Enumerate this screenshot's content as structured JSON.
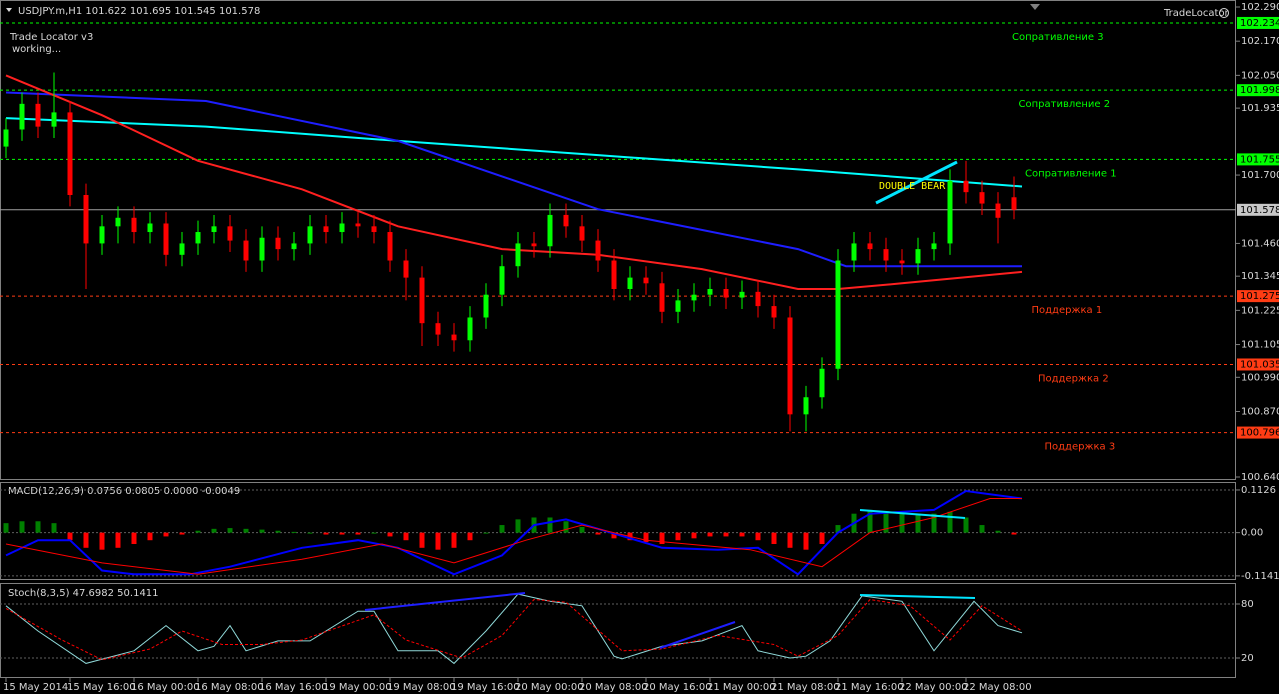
{
  "chart_data": [
    {
      "type": "candlestick",
      "title": "USDJPY.m,H1  101.622 101.695 101.545 101.578",
      "indicator": "Trade Locator v3",
      "status": "working...",
      "logo": "TradeLocator",
      "annotation": "DOUBLE BEAR",
      "x": [
        0,
        2,
        4,
        6,
        8,
        10,
        12,
        14,
        16,
        18,
        20,
        22,
        24,
        26,
        28,
        30,
        32,
        34,
        36,
        38,
        40,
        42,
        44,
        46,
        48,
        50,
        52,
        54,
        56,
        58,
        60,
        62,
        64,
        66,
        68,
        70,
        72,
        74,
        76,
        78,
        80,
        82,
        84,
        86,
        88,
        90,
        92,
        94,
        96,
        98,
        100,
        102,
        104,
        106,
        108,
        110,
        112,
        114,
        116,
        118,
        120,
        122,
        124,
        126
      ],
      "open": [
        101.8,
        101.86,
        101.95,
        101.87,
        101.92,
        101.63,
        101.46,
        101.52,
        101.55,
        101.5,
        101.53,
        101.42,
        101.46,
        101.5,
        101.52,
        101.47,
        101.4,
        101.48,
        101.44,
        101.46,
        101.52,
        101.5,
        101.53,
        101.52,
        101.5,
        101.4,
        101.34,
        101.18,
        101.14,
        101.12,
        101.2,
        101.28,
        101.38,
        101.46,
        101.45,
        101.56,
        101.52,
        101.47,
        101.4,
        101.3,
        101.34,
        101.32,
        101.22,
        101.26,
        101.28,
        101.3,
        101.27,
        101.29,
        101.24,
        101.2,
        100.86,
        100.92,
        101.02,
        101.4,
        101.46,
        101.44,
        101.4,
        101.39,
        101.44,
        101.46,
        101.68,
        101.64,
        101.6,
        101.622
      ],
      "high": [
        101.9,
        101.99,
        101.99,
        102.06,
        101.96,
        101.67,
        101.56,
        101.59,
        101.59,
        101.57,
        101.57,
        101.5,
        101.54,
        101.56,
        101.56,
        101.51,
        101.52,
        101.52,
        101.5,
        101.56,
        101.56,
        101.57,
        101.57,
        101.56,
        101.54,
        101.44,
        101.38,
        101.22,
        101.18,
        101.24,
        101.32,
        101.42,
        101.5,
        101.5,
        101.6,
        101.6,
        101.56,
        101.51,
        101.44,
        101.38,
        101.38,
        101.36,
        101.3,
        101.32,
        101.34,
        101.34,
        101.33,
        101.33,
        101.28,
        101.24,
        100.96,
        101.06,
        101.44,
        101.5,
        101.5,
        101.48,
        101.44,
        101.48,
        101.5,
        101.72,
        101.75,
        101.68,
        101.64,
        101.695
      ],
      "low": [
        101.76,
        101.82,
        101.83,
        101.83,
        101.59,
        101.3,
        101.42,
        101.46,
        101.46,
        101.46,
        101.38,
        101.38,
        101.42,
        101.46,
        101.43,
        101.36,
        101.36,
        101.4,
        101.4,
        101.42,
        101.46,
        101.46,
        101.48,
        101.46,
        101.36,
        101.26,
        101.1,
        101.1,
        101.08,
        101.08,
        101.16,
        101.24,
        101.34,
        101.41,
        101.41,
        101.48,
        101.43,
        101.36,
        101.26,
        101.26,
        101.28,
        101.18,
        101.18,
        101.22,
        101.24,
        101.23,
        101.23,
        101.2,
        101.16,
        100.8,
        100.8,
        100.88,
        100.98,
        101.36,
        101.4,
        101.36,
        101.35,
        101.35,
        101.4,
        101.42,
        101.6,
        101.56,
        101.46,
        101.545
      ],
      "close": [
        101.86,
        101.95,
        101.87,
        101.92,
        101.63,
        101.46,
        101.52,
        101.55,
        101.5,
        101.53,
        101.42,
        101.46,
        101.5,
        101.52,
        101.47,
        101.4,
        101.48,
        101.44,
        101.46,
        101.52,
        101.5,
        101.53,
        101.52,
        101.5,
        101.4,
        101.34,
        101.18,
        101.14,
        101.12,
        101.2,
        101.28,
        101.38,
        101.46,
        101.45,
        101.56,
        101.52,
        101.47,
        101.4,
        101.3,
        101.34,
        101.32,
        101.22,
        101.26,
        101.28,
        101.3,
        101.27,
        101.29,
        101.24,
        101.2,
        100.86,
        100.92,
        101.02,
        101.4,
        101.46,
        101.44,
        101.4,
        101.39,
        101.44,
        101.46,
        101.68,
        101.64,
        101.6,
        101.55,
        101.578
      ],
      "up_color": "#00ff00",
      "down_color": "#ff0000",
      "series": [
        {
          "color": "#00ffff",
          "x": [
            0,
            25,
            49,
            74,
            99,
            127
          ],
          "values": [
            101.9,
            101.87,
            101.82,
            101.77,
            101.72,
            101.66
          ]
        },
        {
          "color": "#1e1eff",
          "x": [
            0,
            25,
            49,
            74,
            99,
            105,
            127
          ],
          "values": [
            101.99,
            101.96,
            101.82,
            101.58,
            101.44,
            101.38,
            101.38
          ]
        },
        {
          "color": "#ff2020",
          "x": [
            0,
            12,
            24,
            37,
            49,
            62,
            74,
            87,
            99,
            104,
            112,
            127
          ],
          "values": [
            102.05,
            101.91,
            101.75,
            101.65,
            101.52,
            101.44,
            101.42,
            101.37,
            101.3,
            101.3,
            101.32,
            101.36
          ]
        }
      ],
      "levels": [
        {
          "label": "Сопративление 3",
          "value": 102.234,
          "color": "#00ff00"
        },
        {
          "label": "Сопративление 2",
          "value": 101.998,
          "color": "#00ff00"
        },
        {
          "label": "Сопративление 1",
          "value": 101.755,
          "color": "#00ff00"
        },
        {
          "label": "Поддержка 1",
          "value": 101.275,
          "color": "#ff3c14"
        },
        {
          "label": "Поддержка 2",
          "value": 101.035,
          "color": "#ff3c14"
        },
        {
          "label": "Поддержка 3",
          "value": 100.796,
          "color": "#ff3c14"
        }
      ],
      "xlim": [
        -0.75,
        153.75
      ],
      "xticks": [
        {
          "value": 0,
          "label": "15 May 2014"
        },
        {
          "value": 8,
          "label": "15 May 16:00"
        },
        {
          "value": 16,
          "label": "16 May 00:00"
        },
        {
          "value": 24,
          "label": "16 May 08:00"
        },
        {
          "value": 32,
          "label": "16 May 16:00"
        },
        {
          "value": 40,
          "label": "19 May 00:00"
        },
        {
          "value": 48,
          "label": "19 May 08:00"
        },
        {
          "value": 56,
          "label": "19 May 16:00"
        },
        {
          "value": 64,
          "label": "20 May 00:00"
        },
        {
          "value": 72,
          "label": "20 May 08:00"
        },
        {
          "value": 80,
          "label": "20 May 16:00"
        },
        {
          "value": 88,
          "label": "21 May 00:00"
        },
        {
          "value": 96,
          "label": "21 May 08:00"
        },
        {
          "value": 104,
          "label": "21 May 16:00"
        },
        {
          "value": 112,
          "label": "22 May 00:00"
        },
        {
          "value": 120,
          "label": "22 May 08:00"
        }
      ],
      "ylim": [
        100.64,
        102.29
      ],
      "yticks": [
        {
          "value": 102.29,
          "label": "102.290"
        },
        {
          "value": 102.17,
          "label": "102.170"
        },
        {
          "value": 102.05,
          "label": "102.050"
        },
        101.935,
        {
          "value": 101.7,
          "label": "101.700"
        },
        {
          "value": 101.46,
          "label": "101.460"
        },
        101.345,
        101.225,
        101.105,
        {
          "value": 100.99,
          "label": "100.990"
        },
        {
          "value": 100.87,
          "label": "100.870"
        },
        {
          "value": 100.64,
          "label": "100.640"
        }
      ]
    },
    {
      "type": "macd",
      "title": "MACD(12,26,9) 0.0756 0.0805 0.0000 -0.0049",
      "values": [
        0.025,
        0.03,
        0.03,
        0.025,
        -0.02,
        -0.04,
        -0.045,
        -0.04,
        -0.03,
        -0.02,
        -0.01,
        -0.005,
        0.005,
        0.01,
        0.012,
        0.01,
        0.008,
        0.005,
        0.002,
        0.0,
        -0.005,
        -0.005,
        -0.005,
        0.0,
        -0.01,
        -0.02,
        -0.04,
        -0.045,
        -0.04,
        -0.02,
        0.0,
        0.02,
        0.035,
        0.04,
        0.04,
        0.03,
        0.015,
        -0.005,
        -0.015,
        -0.02,
        -0.025,
        -0.03,
        -0.02,
        -0.015,
        -0.01,
        -0.01,
        -0.01,
        -0.02,
        -0.03,
        -0.04,
        -0.045,
        -0.03,
        0.02,
        0.05,
        0.06,
        0.055,
        0.05,
        0.05,
        0.05,
        0.055,
        0.04,
        0.02,
        0.005,
        -0.005
      ],
      "up_color": "#008000",
      "down_color": "#ff0000",
      "series": [
        {
          "color": "#0000ff",
          "x": [
            0,
            4,
            8,
            12,
            16,
            23,
            28,
            37,
            44,
            49,
            56,
            62,
            66,
            70,
            74,
            82,
            89,
            94,
            99,
            104,
            108,
            116,
            120,
            127
          ],
          "values": [
            -0.06,
            -0.02,
            -0.02,
            -0.1,
            -0.11,
            -0.11,
            -0.09,
            -0.04,
            -0.02,
            -0.04,
            -0.11,
            -0.06,
            0.02,
            0.035,
            0.01,
            -0.04,
            -0.045,
            -0.04,
            -0.11,
            0.0,
            0.05,
            0.06,
            0.11,
            0.09
          ]
        },
        {
          "color": "#ff0000",
          "x": [
            0,
            12,
            24,
            37,
            47,
            56,
            65,
            72,
            80,
            93,
            102,
            108,
            116,
            123,
            127
          ],
          "values": [
            -0.03,
            -0.08,
            -0.11,
            -0.07,
            -0.03,
            -0.08,
            -0.02,
            0.02,
            -0.02,
            -0.045,
            -0.09,
            0.0,
            0.04,
            0.09,
            0.09
          ]
        }
      ],
      "ylim": [
        -0.125,
        0.131
      ],
      "yticks": [
        0.1126,
        {
          "value": 0,
          "label": "0.00"
        },
        -0.1141
      ]
    },
    {
      "type": "stochastic",
      "title": "Stoch(8,3,5) 47.6982 50.1411",
      "series": [
        {
          "color": "#8fd8d8",
          "x": [
            0,
            4,
            10,
            16,
            20,
            24,
            26,
            28,
            30,
            34,
            38,
            44,
            46,
            49,
            54,
            56,
            60,
            64,
            68,
            72,
            76,
            77,
            82,
            87,
            92,
            94,
            98,
            100,
            103,
            107,
            112,
            116,
            121,
            124,
            127
          ],
          "values": [
            78,
            50,
            14,
            28,
            56,
            28,
            33,
            56,
            28,
            39,
            39,
            72,
            72,
            28,
            28,
            14,
            50,
            91,
            83,
            78,
            22,
            19,
            33,
            39,
            56,
            28,
            20,
            22,
            39,
            89,
            83,
            28,
            83,
            56,
            48
          ]
        },
        {
          "color": "#ff0000",
          "x": [
            0,
            7,
            12,
            18,
            22,
            27,
            32,
            37,
            46,
            50,
            57,
            62,
            66,
            70,
            77,
            82,
            89,
            96,
            99,
            104,
            108,
            113,
            118,
            122,
            127
          ],
          "values": [
            75,
            40,
            18,
            30,
            50,
            35,
            35,
            40,
            68,
            40,
            20,
            45,
            85,
            82,
            28,
            30,
            45,
            35,
            22,
            45,
            85,
            78,
            40,
            78,
            50
          ]
        }
      ],
      "ylim": [
        0,
        100
      ],
      "yticks": [
        80,
        20
      ]
    }
  ]
}
